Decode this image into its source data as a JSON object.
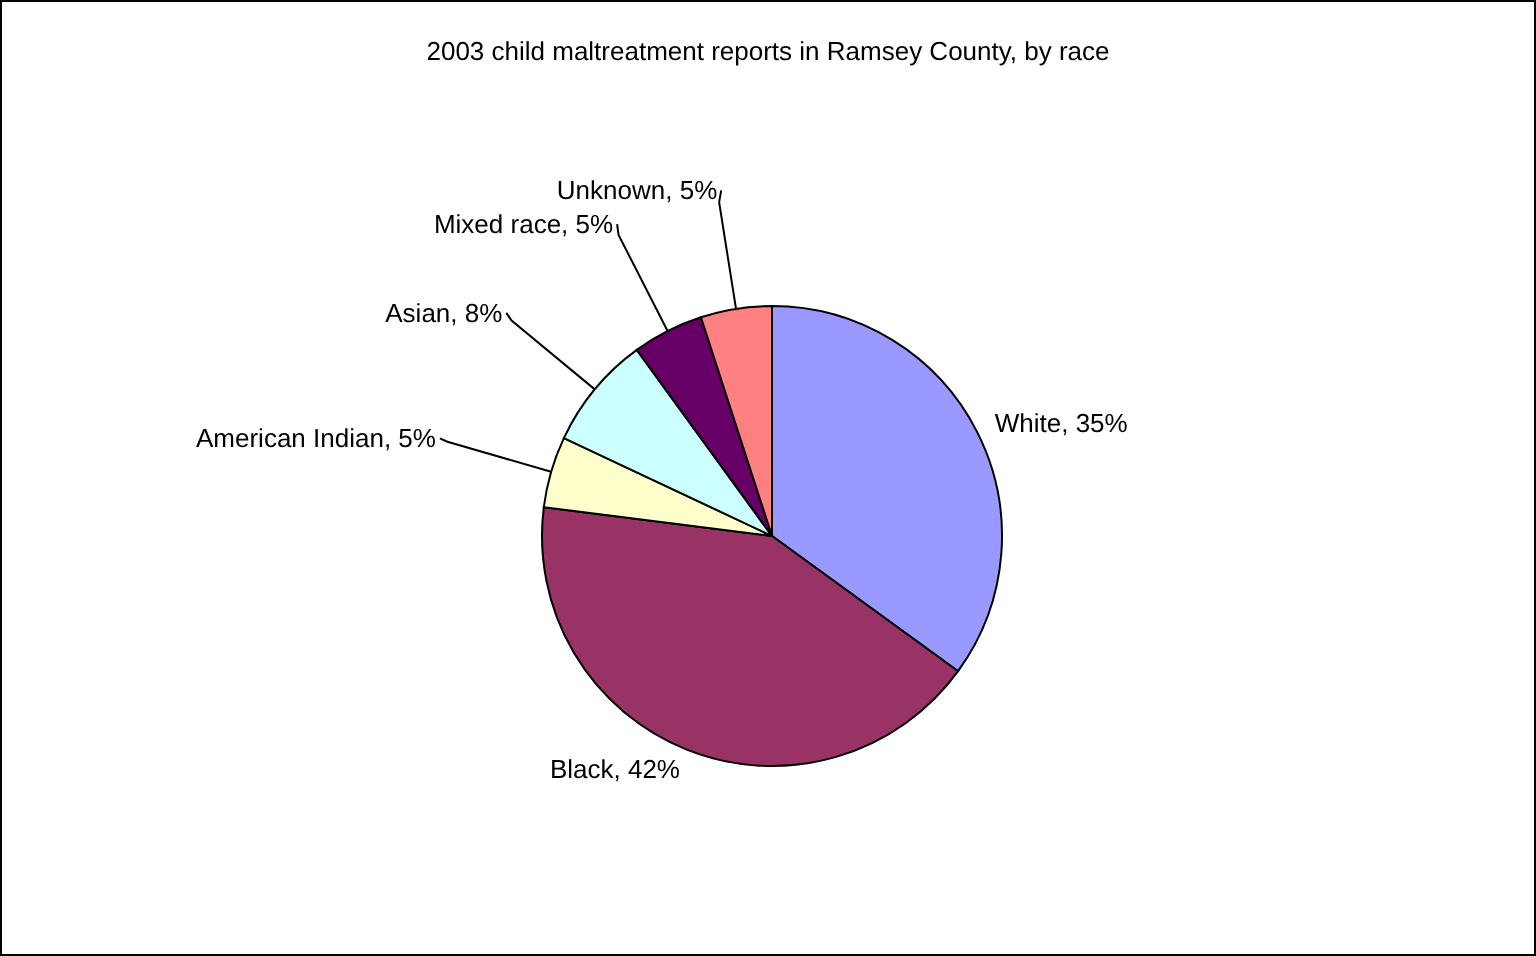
{
  "chart_data": {
    "type": "pie",
    "title": "2003 child maltreatment reports in Ramsey County, by race",
    "categories": [
      "White",
      "Black",
      "American Indian",
      "Asian",
      "Mixed race",
      "Unknown"
    ],
    "values": [
      35,
      42,
      5,
      8,
      5,
      5
    ],
    "value_labels": [
      ", 35%",
      ", 42%",
      ", 5%",
      ", 8%",
      ", 5%",
      ", 5%"
    ],
    "colors": [
      "#9999ff",
      "#993366",
      "#ffffcc",
      "#ccffff",
      "#660066",
      "#ff8080"
    ],
    "legend": false
  }
}
